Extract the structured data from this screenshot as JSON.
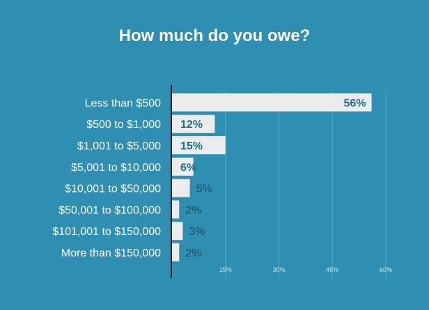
{
  "chart_data": {
    "type": "bar",
    "orientation": "horizontal",
    "title": "How much do you owe?",
    "xlabel": "",
    "ylabel": "",
    "categories": [
      "Less than $500",
      "$500 to $1,000",
      "$1,001 to $5,000",
      "$5,001 to $10,000",
      "$10,001 to $50,000",
      "$50,001 to $100,000",
      "$101,001 to $150,000",
      "More than $150,000"
    ],
    "values": [
      56,
      12,
      15,
      6,
      5,
      2,
      3,
      2
    ],
    "value_labels": [
      "56%",
      "12%",
      "15%",
      "6%",
      "5%",
      "2%",
      "3%",
      "2%"
    ],
    "xlim": [
      0,
      60
    ],
    "xticks": [
      15,
      30,
      45,
      60
    ],
    "xtick_labels": [
      "15%",
      "30%",
      "45%",
      "60%"
    ],
    "grid": true,
    "legend": "none",
    "colors": {
      "background": "#2e8fb3",
      "bar": "#ececec",
      "label_inside": "#1f6e8e",
      "label_outside": "#1c4f63"
    }
  }
}
